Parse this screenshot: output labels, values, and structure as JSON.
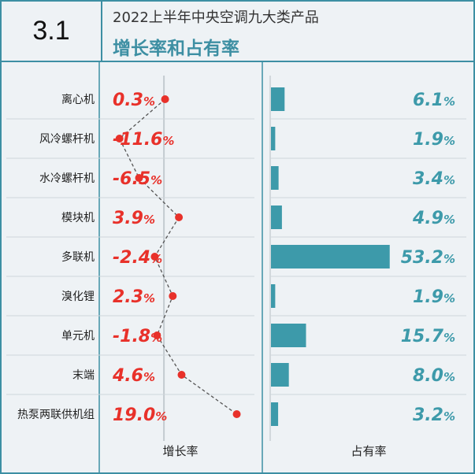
{
  "section_number": "3.1",
  "title": "2022上半年中央空调九大类产品",
  "subtitle": "增长率和占有率",
  "colors": {
    "border": "#3d8fa3",
    "growth": "#e8312a",
    "share": "#3d9aaa",
    "background": "#eef2f5"
  },
  "chart_data": {
    "type": "table",
    "categories": [
      "离心机",
      "风冷螺杆机",
      "水冷螺杆机",
      "模块机",
      "多联机",
      "溴化锂",
      "单元机",
      "末端",
      "热泵两联供机组"
    ],
    "series": [
      {
        "name": "增长率",
        "type": "dot-line",
        "unit": "%",
        "values": [
          0.3,
          -11.6,
          -6.5,
          3.9,
          -2.4,
          2.3,
          -1.8,
          4.6,
          19.0
        ],
        "labels": [
          "0.3",
          "-11.6",
          "-6.5",
          "3.9",
          "-2.4",
          "2.3",
          "-1.8",
          "4.6",
          "19.0"
        ]
      },
      {
        "name": "占有率",
        "type": "bar",
        "unit": "%",
        "values": [
          6.1,
          1.9,
          3.4,
          4.9,
          53.2,
          1.9,
          15.7,
          8.0,
          3.2
        ],
        "labels": [
          "6.1",
          "1.9",
          "3.4",
          "4.9",
          "53.2",
          "1.9",
          "15.7",
          "8.0",
          "3.2"
        ]
      }
    ],
    "xlabel_growth": "增长率",
    "xlabel_share": "占有率",
    "growth_range": [
      -14,
      23
    ],
    "share_range": [
      0,
      60
    ]
  }
}
